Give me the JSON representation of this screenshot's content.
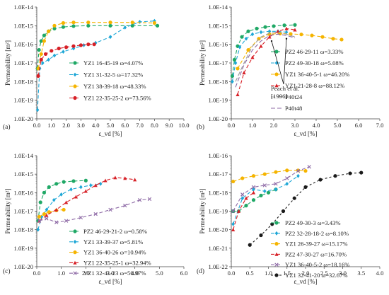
{
  "chart_data": [
    {
      "type": "line",
      "panel_label": "(a)",
      "xlabel": "ε_vd [%]",
      "ylabel": "Permeability  [m²]",
      "xlim": [
        0,
        10
      ],
      "xticks": [
        0,
        1,
        2,
        3,
        4,
        5,
        6,
        7,
        8,
        9,
        10
      ],
      "xtick_labels": [
        "0.0",
        "1.0",
        "2.0",
        "3.0",
        "4.0",
        "5.0",
        "6.0",
        "7.0",
        "8.0",
        "9.0",
        "10.0"
      ],
      "ylim_exp": [
        -20,
        -14
      ],
      "ytick_labels": [
        "1.0E-20",
        "1.0E-19",
        "1.0E-18",
        "1.0E-17",
        "1.0E-16",
        "1.0E-15",
        "1.0E-14"
      ],
      "log_y": true,
      "grid": false,
      "legend_position": "center-right",
      "series": [
        {
          "name": "YZ1 16-45-19 ω=4.07%",
          "color": "#1fa866",
          "marker": "circle",
          "dash": "5,3",
          "x": [
            0.05,
            0.15,
            0.3,
            0.5,
            0.8,
            1.2,
            1.8,
            2.5,
            3.5,
            5.0,
            6.5,
            8.2
          ],
          "y": [
            5e-18,
            5e-17,
            1.5e-16,
            3e-16,
            5e-16,
            7e-16,
            8.5e-16,
            9.5e-16,
            1e-15,
            1e-15,
            1e-15,
            1e-15
          ]
        },
        {
          "name": "YZ1 31-32-5 ω=17.32%",
          "color": "#1ea7d6",
          "marker": "diamond",
          "dash": "5,3",
          "x": [
            0.05,
            0.2,
            0.4,
            0.8,
            1.2,
            1.8,
            2.5,
            3.2,
            4.0,
            5.0,
            6.0,
            7.0,
            8.0
          ],
          "y": [
            3e-20,
            5e-18,
            1e-17,
            1.5e-17,
            2.5e-17,
            4e-17,
            6e-17,
            9e-17,
            1.2e-16,
            2.5e-16,
            8e-16,
            1.6e-15,
            1.8e-15
          ]
        },
        {
          "name": "YZ1 38-39-18 ω=48.33%",
          "color": "#f5b400",
          "marker": "circle",
          "dash": "5,3",
          "x": [
            0.1,
            0.3,
            0.5,
            0.8,
            1.2,
            1.8,
            2.5,
            3.5,
            5.0,
            6.5,
            8.0
          ],
          "y": [
            5e-18,
            3e-17,
            1.5e-16,
            5e-16,
            1e-15,
            1.4e-15,
            1.5e-15,
            1.5e-15,
            1.5e-15,
            1.5e-15,
            1.4e-15
          ]
        },
        {
          "name": "YZ1 22-35-25-2 ω=73.56%",
          "color": "#d71f26",
          "marker": "circle",
          "dash": "5,3",
          "x": [
            0.1,
            0.3,
            0.6,
            1.0,
            1.5,
            2.0,
            2.5,
            3.0,
            3.5,
            3.9
          ],
          "y": [
            2e-18,
            1.5e-17,
            3e-17,
            4.5e-17,
            6e-17,
            7e-17,
            8e-17,
            9e-17,
            1e-16,
            1e-16
          ]
        }
      ]
    },
    {
      "type": "line",
      "panel_label": "(b)",
      "xlabel": "ε_vd [%]",
      "ylabel": "Permeability  [m²]",
      "xlim": [
        0,
        7
      ],
      "xticks": [
        0,
        1,
        2,
        3,
        4,
        5,
        6,
        7
      ],
      "xtick_labels": [
        "0.0",
        "1.0",
        "2.0",
        "3.0",
        "4.0",
        "5.0",
        "6.0",
        "7.0"
      ],
      "ylim_exp": [
        -20,
        -14
      ],
      "ytick_labels": [
        "1.0E-20",
        "1.0E-19",
        "1.0E-18",
        "1.0E-17",
        "1.0E-16",
        "1.0E-15",
        "1.0E-14"
      ],
      "log_y": true,
      "grid": false,
      "legend_position": "center-right",
      "annotation": {
        "text_lines": [
          "Peach et al.",
          "[1996]"
        ],
        "points_to": [
          [
            1.9,
            1.5e-16
          ],
          [
            2.6,
            2e-16
          ]
        ]
      },
      "series": [
        {
          "name": "PZ2  46-29-11 ω=3.33%",
          "color": "#1fa866",
          "marker": "circle",
          "dash": "5,3",
          "x": [
            0.05,
            0.15,
            0.3,
            0.5,
            0.8,
            1.2,
            1.6,
            2.0,
            2.5,
            3.0
          ],
          "y": [
            2e-18,
            1.5e-17,
            8e-17,
            2.5e-16,
            5e-16,
            7e-16,
            8.5e-16,
            9.5e-16,
            1.05e-15,
            1.1e-15
          ]
        },
        {
          "name": "PZ2 49-30-18 ω=5.08%",
          "color": "#1ea7d6",
          "marker": "diamond",
          "dash": "5,3",
          "x": [
            0.05,
            0.2,
            0.4,
            0.7,
            1.0,
            1.4,
            1.8,
            2.2,
            2.6
          ],
          "y": [
            1e-18,
            1e-17,
            7e-17,
            2e-16,
            3.5e-16,
            4.5e-16,
            5e-16,
            5e-16,
            4.5e-16
          ]
        },
        {
          "name": "YZ1 36-40-5-1 ω=46.20%",
          "color": "#f5b400",
          "marker": "circle",
          "dash": "5,3",
          "x": [
            0.3,
            0.8,
            1.3,
            1.8,
            2.3,
            2.8,
            3.3,
            3.8,
            4.3,
            4.8,
            5.2
          ],
          "y": [
            5e-18,
            5e-17,
            2e-16,
            3.5e-16,
            3.8e-16,
            3.6e-16,
            3.4e-16,
            3e-16,
            2.5e-16,
            2e-16,
            1.8e-16
          ]
        },
        {
          "name": "YZ1 21-28-8 ω=88.12%",
          "color": "#d71f26",
          "marker": "triangle",
          "dash": "5,3",
          "x": [
            0.3,
            0.6,
            1.0,
            1.4,
            1.8,
            2.2,
            2.6,
            3.0
          ],
          "y": [
            2e-19,
            3e-18,
            2e-17,
            8e-17,
            2.5e-16,
            5e-16,
            7e-16,
            6e-16
          ]
        },
        {
          "name": "P40t24",
          "color": "#9c9c9c",
          "marker": "none",
          "dash": "6,3",
          "x": [
            0.2,
            0.6,
            1.0,
            1.4,
            1.8,
            2.2,
            2.6,
            3.0
          ],
          "y": [
            1e-18,
            1e-17,
            8e-17,
            2.5e-16,
            4e-16,
            4.5e-16,
            3.5e-16,
            2.5e-16
          ]
        },
        {
          "name": "P40t48",
          "color": "#8e6aa6",
          "marker": "none",
          "dash": "6,3",
          "x": [
            0.2,
            0.6,
            1.0,
            1.4,
            1.8,
            2.2,
            2.6,
            3.0
          ],
          "y": [
            5e-19,
            8e-18,
            5e-17,
            1.5e-16,
            3e-16,
            3.5e-16,
            3e-16,
            2.2e-16
          ]
        }
      ]
    },
    {
      "type": "line",
      "panel_label": "(c)",
      "xlabel": "ε_vd [%]",
      "ylabel": "Permeability  [m²]",
      "xlim": [
        0,
        6
      ],
      "xticks": [
        0,
        1,
        2,
        3,
        4,
        5,
        6
      ],
      "xtick_labels": [
        "0.0",
        "1.0",
        "2.0",
        "3.0",
        "4.0",
        "5.0",
        "6.0"
      ],
      "ylim_exp": [
        -20,
        -14
      ],
      "ytick_labels": [
        "1.0E-20",
        "1.0E-19",
        "1.0E-18",
        "1.0E-17",
        "1.0E-16",
        "1.0E-15",
        "1.0E-14"
      ],
      "log_y": true,
      "grid": false,
      "legend_position": "bottom-right",
      "series": [
        {
          "name": "PZ2 46-29-21-2 ω=0.58%",
          "color": "#1fa866",
          "marker": "circle",
          "dash": "5,3",
          "x": [
            0.05,
            0.15,
            0.3,
            0.5,
            0.8,
            1.1,
            1.5,
            2.0
          ],
          "y": [
            3e-18,
            3e-17,
            1e-16,
            2e-16,
            3e-16,
            3.8e-16,
            4.2e-16,
            4.5e-16
          ]
        },
        {
          "name": "YZ1 33-39-37 ω=5.81%",
          "color": "#1ea7d6",
          "marker": "diamond",
          "dash": "5,3",
          "x": [
            0.05,
            0.2,
            0.4,
            0.7,
            1.0,
            1.4,
            1.8,
            2.2,
            2.6
          ],
          "y": [
            1e-18,
            5e-18,
            1.2e-17,
            4e-17,
            8e-17,
            1.5e-16,
            2e-16,
            2.5e-16,
            3e-16
          ]
        },
        {
          "name": "YZ1 36-40-26 ω=10.94%",
          "color": "#f5b400",
          "marker": "circle",
          "dash": "5,3",
          "x": [
            0.1,
            0.3,
            0.5,
            0.8,
            1.1
          ],
          "y": [
            5e-18,
            7e-18,
            9e-18,
            1.1e-17,
            1.2e-17
          ]
        },
        {
          "name": "YZ1 22-35-25-1 ω=32.94%",
          "color": "#d71f26",
          "marker": "triangle",
          "dash": "5,3",
          "x": [
            0.1,
            0.4,
            0.8,
            1.2,
            1.6,
            2.0,
            2.4,
            2.8,
            3.2,
            3.6,
            4.0
          ],
          "y": [
            3e-18,
            6e-18,
            1.2e-17,
            3e-17,
            6e-17,
            1.2e-16,
            2.5e-16,
            4.5e-16,
            6.5e-16,
            6e-16,
            5e-16
          ]
        },
        {
          "name": "YZ1 32-41-23 ω=50.97%",
          "color": "#8e6aa6",
          "marker": "cross",
          "dash": "5,3",
          "x": [
            0.1,
            0.4,
            0.8,
            1.2,
            1.8,
            2.4,
            3.0,
            3.6,
            4.2,
            4.6
          ],
          "y": [
            3e-18,
            4e-18,
            2.5e-18,
            3e-18,
            4.5e-18,
            7e-18,
            1.2e-17,
            2e-17,
            4e-17,
            4.5e-17
          ]
        }
      ]
    },
    {
      "type": "line",
      "panel_label": "(d)",
      "xlabel": "ε_vd [%]",
      "ylabel": "Permeability  [m²]",
      "xlim": [
        0,
        4
      ],
      "xticks": [
        0,
        0.5,
        1,
        1.5,
        2,
        2.5,
        3,
        3.5,
        4
      ],
      "xtick_labels": [
        "0.0",
        "0.5",
        "1.0",
        "1.5",
        "2.0",
        "2.5",
        "3.0",
        "3.5",
        "4.0"
      ],
      "ylim_exp": [
        -22,
        -16
      ],
      "ytick_labels": [
        "1.0E-22",
        "1.0E-21",
        "1.0E-20",
        "1.0E-19",
        "1.0E-18",
        "1.0E-17",
        "1.0E-16"
      ],
      "log_y": true,
      "grid": false,
      "legend_position": "bottom-right",
      "series": [
        {
          "name": "PZ2 49-30-3 ω=3.43%",
          "color": "#1fa866",
          "marker": "circle",
          "dash": "5,3",
          "x": [
            0.05,
            0.2,
            0.4,
            0.6,
            0.8,
            1.0,
            1.2
          ],
          "y": [
            1e-19,
            1e-19,
            2e-19,
            4e-19,
            7e-19,
            1e-18,
            1.5e-18
          ]
        },
        {
          "name": "PZ2 32-28-18-2 ω=8.10%",
          "color": "#1ea7d6",
          "marker": "diamond",
          "dash": "5,3",
          "x": [
            0.05,
            0.3,
            0.6,
            0.9,
            1.2,
            1.5,
            1.8
          ],
          "y": [
            2e-20,
            5e-19,
            1.5e-18,
            1.2e-18,
            1.5e-18,
            3e-18,
            8e-18
          ]
        },
        {
          "name": "YZ1 26-39-27 ω=15.17%",
          "color": "#f5b400",
          "marker": "circle",
          "dash": "5,3",
          "x": [
            0.05,
            0.3,
            0.6,
            0.9,
            1.2,
            1.5,
            1.8,
            2.0
          ],
          "y": [
            4e-18,
            6e-18,
            8e-18,
            1e-17,
            1.3e-17,
            1.6e-17,
            1.6e-17,
            1.5e-17
          ]
        },
        {
          "name": "PZ2 47-30-27 ω=16.70%",
          "color": "#d71f26",
          "marker": "triangle",
          "dash": "5,3",
          "x": [
            0.05,
            0.2,
            0.4,
            0.6
          ],
          "y": [
            1e-20,
            1e-19,
            5e-19,
            1e-18
          ]
        },
        {
          "name": "YZ1 36-40-5-2 ω=18.16%",
          "color": "#8e6aa6",
          "marker": "cross",
          "dash": "5,3",
          "x": [
            0.05,
            0.3,
            0.6,
            0.9,
            1.2,
            1.5,
            1.8,
            2.1
          ],
          "y": [
            1e-19,
            8e-19,
            2e-18,
            2.5e-18,
            3e-18,
            6e-18,
            1.5e-17,
            2.5e-17
          ]
        },
        {
          "name": "YZ1 32-41-20 ω=32.67%",
          "color": "#1a1a1a",
          "marker": "circle",
          "dash": "3,3",
          "x": [
            0.5,
            0.8,
            1.1,
            1.4,
            1.7,
            2.0,
            2.4,
            2.8,
            3.2,
            3.5
          ],
          "y": [
            1.5e-21,
            5e-21,
            2e-20,
            1e-19,
            5e-19,
            2e-18,
            5e-18,
            8e-18,
            1.1e-17,
            1.2e-17
          ]
        }
      ]
    }
  ]
}
